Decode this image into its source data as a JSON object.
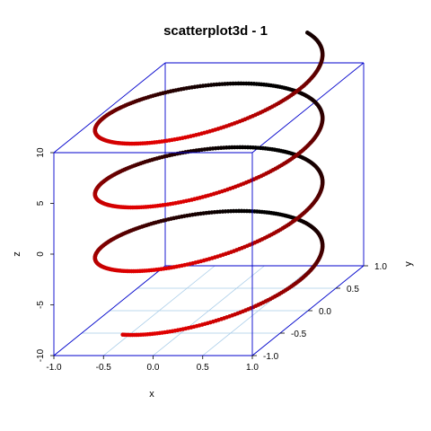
{
  "chart_data": {
    "type": "scatter3d",
    "title": "scatterplot3d - 1",
    "xlabel": "x",
    "ylabel": "y",
    "zlabel": "z",
    "xlim": [
      -1.0,
      1.0
    ],
    "ylim": [
      -1.0,
      1.0
    ],
    "zlim": [
      -10,
      10
    ],
    "x_ticks": [
      "-1.0",
      "-0.5",
      "0.0",
      "0.5",
      "1.0"
    ],
    "y_ticks": [
      "-1.0",
      "-0.5",
      "0.0",
      "0.5",
      "1.0"
    ],
    "z_ticks": [
      "-10",
      "-5",
      "0",
      "5",
      "10"
    ],
    "grid": true,
    "box": true,
    "series": [
      {
        "equation": "x = cos(t), y = sin(t), z = t",
        "t_range": [
          -8.2,
          13.6
        ],
        "color_near": "#e00000",
        "color_far": "#000000"
      }
    ],
    "colors": {
      "box": "#0000cc",
      "grid": "#a8cce8",
      "points_near": "#e00000",
      "points_far": "#000000"
    }
  }
}
